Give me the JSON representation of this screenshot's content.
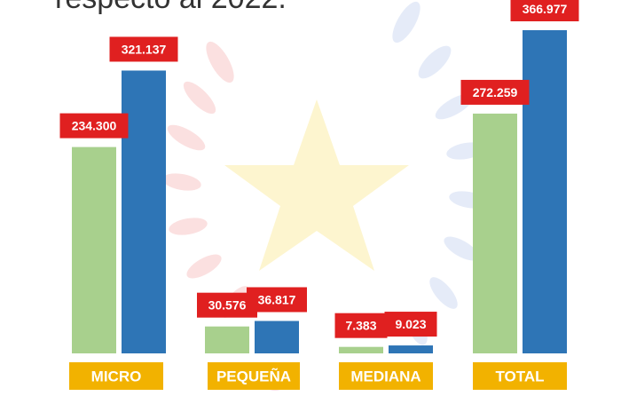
{
  "title_fragment": "respecto al 2022.",
  "colors": {
    "series_a": "#a8d08d",
    "series_b": "#2e75b6",
    "value_label_bg": "#e02020",
    "category_bg": "#f2b200",
    "text_light": "#ffffff",
    "watermark_star": "#fdf5cf",
    "watermark_left": "#fbe0e0",
    "watermark_right": "#e5ebf8"
  },
  "chart_data": {
    "type": "bar",
    "categories": [
      "MICRO",
      "PEQUEÑA",
      "MEDIANA",
      "TOTAL"
    ],
    "series": [
      {
        "values": [
          234300,
          30576,
          7383,
          272259
        ]
      },
      {
        "values": [
          321137,
          36817,
          9023,
          366977
        ]
      }
    ],
    "value_labels": [
      [
        "234.300",
        "30.576",
        "7.383",
        "272.259"
      ],
      [
        "321.137",
        "36.817",
        "9.023",
        "366.977"
      ]
    ],
    "ylim": [
      0,
      366977
    ],
    "grid": false,
    "legend": "none"
  }
}
